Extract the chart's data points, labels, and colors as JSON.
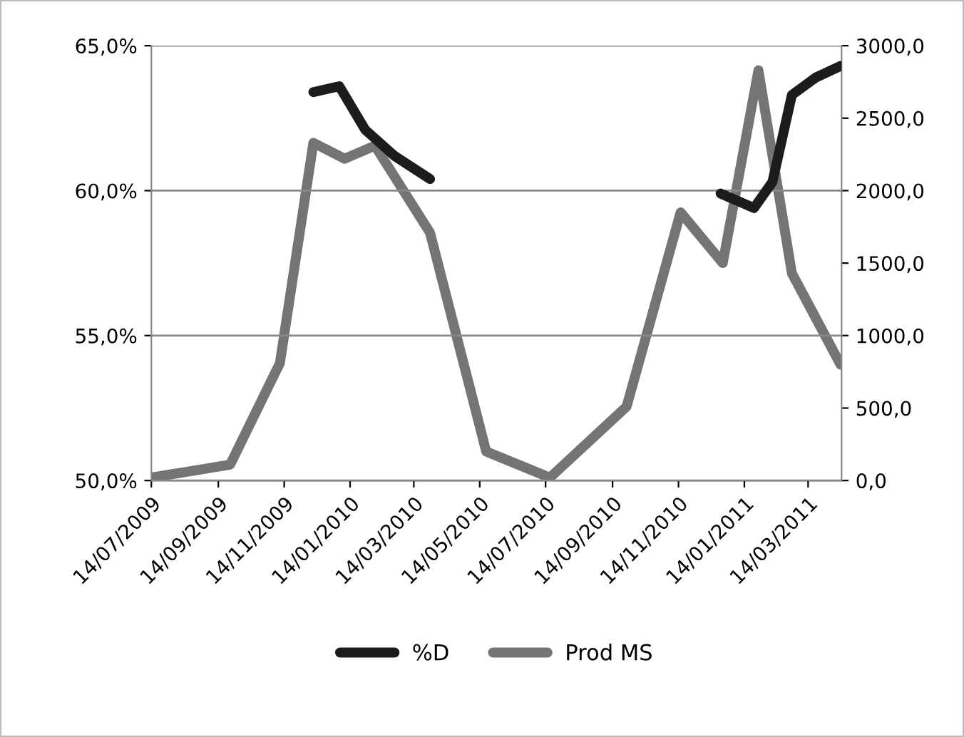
{
  "chart_data": {
    "type": "line",
    "series": [
      {
        "name": "%D",
        "color": "#1c1c1c",
        "x": [
          "2009-12-11",
          "2010-01-04",
          "2010-01-28",
          "2010-02-24",
          "2010-03-29",
          "2010-07-15",
          "2010-12-23",
          "2011-01-23",
          "2011-02-09",
          "2011-02-27",
          "2011-03-21",
          "2011-04-13"
        ],
        "values": [
          63.4,
          63.6,
          62.1,
          61.2,
          60.4,
          null,
          59.9,
          59.4,
          60.3,
          63.3,
          63.9,
          64.3
        ]
      },
      {
        "name": "Prod MS",
        "color": "#747474",
        "axis": "y2",
        "x": [
          "2009-07-14",
          "2009-09-25",
          "2009-11-10",
          "2009-12-11",
          "2010-01-09",
          "2010-02-06",
          "2010-03-29",
          "2010-05-20",
          "2010-07-18",
          "2010-09-27",
          "2010-11-16",
          "2010-12-25",
          "2011-01-27",
          "2011-02-27",
          "2011-04-13"
        ],
        "values": [
          20,
          110,
          810,
          2330,
          2220,
          2310,
          1710,
          200,
          20,
          510,
          1850,
          1500,
          2830,
          1430,
          800
        ]
      }
    ],
    "xlim": [
      "2009-07-14",
      "2011-04-14"
    ],
    "xticks": [
      {
        "value": "2009-07-14",
        "label": "14/07/2009"
      },
      {
        "value": "2009-09-14",
        "label": "14/09/2009"
      },
      {
        "value": "2009-11-14",
        "label": "14/11/2009"
      },
      {
        "value": "2010-01-14",
        "label": "14/01/2010"
      },
      {
        "value": "2010-03-14",
        "label": "14/03/2010"
      },
      {
        "value": "2010-05-14",
        "label": "14/05/2010"
      },
      {
        "value": "2010-07-14",
        "label": "14/07/2010"
      },
      {
        "value": "2010-09-14",
        "label": "14/09/2010"
      },
      {
        "value": "2010-11-14",
        "label": "14/11/2010"
      },
      {
        "value": "2011-01-14",
        "label": "14/01/2011"
      },
      {
        "value": "2011-03-14",
        "label": "14/03/2011"
      }
    ],
    "ylim": [
      50,
      65
    ],
    "yticks": [
      {
        "value": 50,
        "label": "50,0%"
      },
      {
        "value": 55,
        "label": "55,0%"
      },
      {
        "value": 60,
        "label": "60,0%"
      },
      {
        "value": 65,
        "label": "65,0%"
      }
    ],
    "y2lim": [
      0,
      3000
    ],
    "y2ticks": [
      {
        "value": 0,
        "label": "0,0"
      },
      {
        "value": 500,
        "label": "500,0"
      },
      {
        "value": 1000,
        "label": "1000,0"
      },
      {
        "value": 1500,
        "label": "1500,0"
      },
      {
        "value": 2000,
        "label": "2000,0"
      },
      {
        "value": 2500,
        "label": "2500,0"
      },
      {
        "value": 3000,
        "label": "3000,0"
      }
    ],
    "grid": "y",
    "legend": "bottom",
    "line_style": "solid",
    "marker": "none"
  }
}
